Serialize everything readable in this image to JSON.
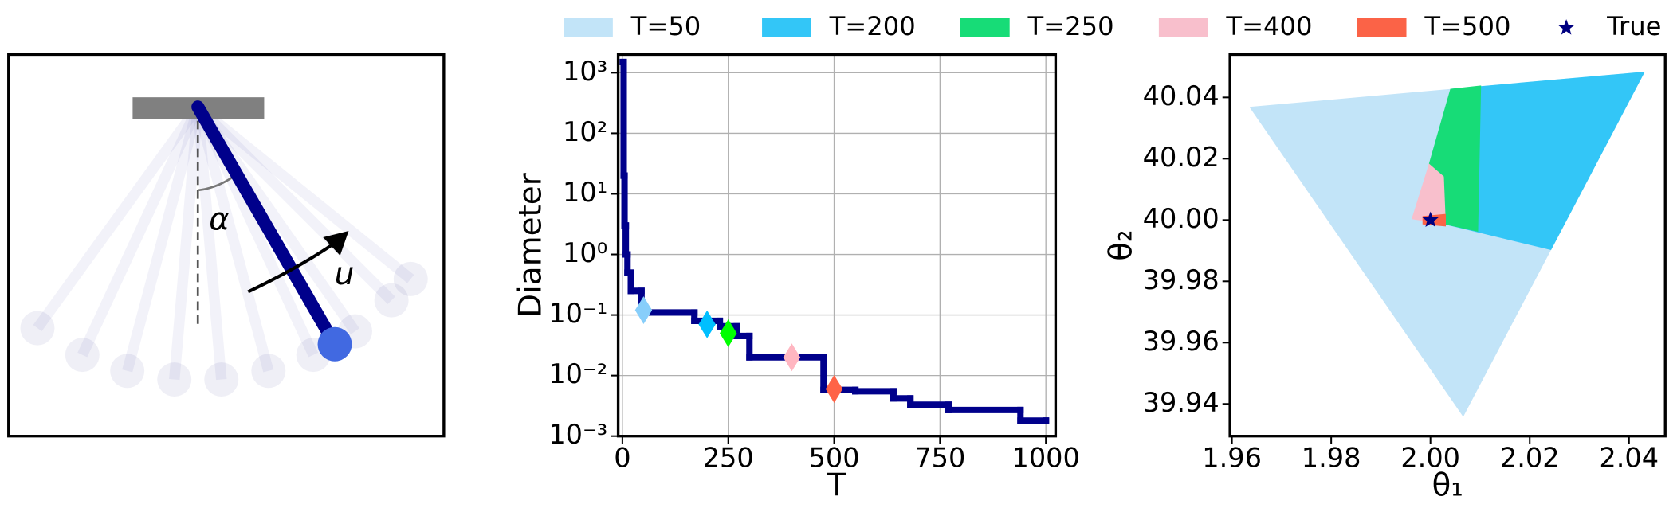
{
  "diagram": {
    "angle_label": "α",
    "input_label": "u"
  },
  "chart_data": [
    {
      "type": "step",
      "xlabel": "T",
      "ylabel": "Diameter",
      "color": "#00008b",
      "x": [
        1,
        3,
        5,
        8,
        12,
        20,
        45,
        170,
        230,
        270,
        300,
        475,
        550,
        640,
        680,
        770,
        940,
        1000
      ],
      "values": [
        1500,
        20,
        3,
        1,
        0.5,
        0.25,
        0.11,
        0.08,
        0.065,
        0.045,
        0.02,
        0.0058,
        0.0055,
        0.0042,
        0.0033,
        0.0027,
        0.0018,
        0.0018
      ],
      "markers": {
        "x": [
          50,
          200,
          250,
          400,
          500
        ],
        "values": [
          0.12,
          0.07,
          0.05,
          0.02,
          0.006
        ],
        "colors": [
          "#87cefa",
          "#00bfff",
          "#00ff00",
          "#ffb6c1",
          "#ff6347"
        ]
      },
      "xlim": [
        -10,
        1023
      ],
      "ylim": [
        0.001,
        2000
      ],
      "log_y": true,
      "xticks": [
        0,
        250,
        500,
        750,
        1000
      ],
      "yticks": [
        {
          "value": 0.001,
          "label": "10⁻³"
        },
        {
          "value": 0.01,
          "label": "10⁻²"
        },
        {
          "value": 0.1,
          "label": "10⁻¹"
        },
        {
          "value": 1,
          "label": "10⁰"
        },
        {
          "value": 10,
          "label": "10¹"
        },
        {
          "value": 100,
          "label": "10²"
        },
        {
          "value": 1000,
          "label": "10³"
        }
      ],
      "grid": true
    },
    {
      "type": "polygon",
      "xlabel": "θ₁",
      "ylabel": "θ₂",
      "legend": "top",
      "series": [
        {
          "name": "T=50",
          "color": "#c2e4f8",
          "x": [
            1.9635,
            2.0432,
            2.0066
          ],
          "values": [
            40.0369,
            40.0484,
            39.9358
          ]
        },
        {
          "name": "T=200",
          "color": "#33c6f7",
          "x": [
            2.004,
            2.0432,
            2.0243,
            2.0031
          ],
          "values": [
            40.0428,
            40.0484,
            39.9902,
            39.9985
          ]
        },
        {
          "name": "T=250",
          "color": "#17dc77",
          "x": [
            2.004,
            2.0102,
            2.0096,
            2.0031,
            1.9997
          ],
          "values": [
            40.0428,
            40.0439,
            39.9962,
            39.9985,
            40.0184
          ]
        },
        {
          "name": "T=400",
          "color": "#f8bfcc",
          "x": [
            1.9997,
            2.0027,
            2.0031,
            1.9962
          ],
          "values": [
            40.0184,
            40.0142,
            39.9985,
            40.0003
          ]
        },
        {
          "name": "T=500",
          "color": "#fb6347",
          "x": [
            1.9984,
            2.0031,
            2.0031,
            1.9984
          ],
          "values": [
            40.0013,
            40.002,
            39.9979,
            39.9986
          ]
        },
        {
          "name": "True",
          "color": "#000080",
          "marker": "star",
          "x": [
            2
          ],
          "values": [
            40
          ]
        }
      ],
      "xlim": [
        1.9596,
        2.0473
      ],
      "ylim": [
        39.9295,
        40.054
      ],
      "xticks": [
        1.96,
        1.98,
        {
          "value": 2,
          "label": "2.00"
        },
        2.02,
        2.04
      ],
      "yticks": [
        39.94,
        39.96,
        39.98,
        {
          "value": 40,
          "label": "40.00"
        },
        40.02,
        40.04
      ],
      "grid": false
    }
  ]
}
